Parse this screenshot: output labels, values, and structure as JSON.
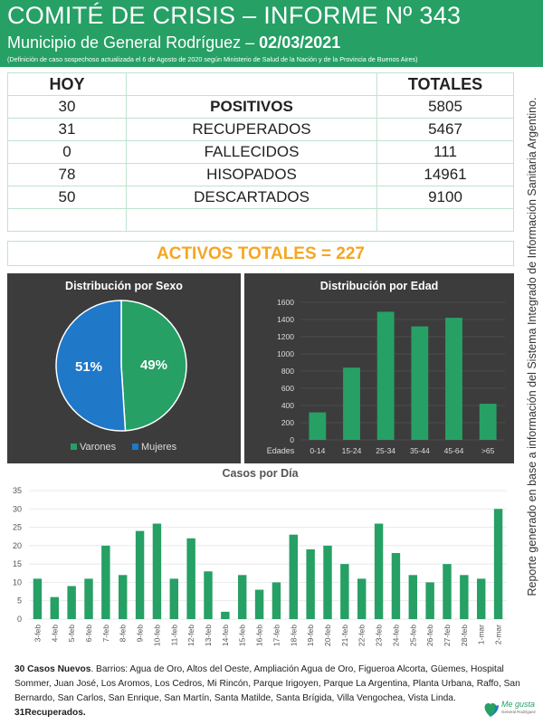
{
  "header": {
    "title": "COMITÉ DE CRISIS – INFORME Nº 343",
    "subtitle_prefix": "Municipio de General Rodríguez –",
    "date": "02/03/2021",
    "note": "(Definición de caso sospechoso actualizada el 6 de Agosto de 2020 según Ministerio de Salud de la Nación y de la Provincia de Buenos Aires)"
  },
  "summary": {
    "col_today": "HOY",
    "col_total": "TOTALES",
    "rows": [
      {
        "hoy": "30",
        "label": "POSITIVOS",
        "total": "5805"
      },
      {
        "hoy": "31",
        "label": "RECUPERADOS",
        "total": "5467"
      },
      {
        "hoy": "0",
        "label": "FALLECIDOS",
        "total": "111"
      },
      {
        "hoy": "78",
        "label": "HISOPADOS",
        "total": "14961"
      },
      {
        "hoy": "50",
        "label": "DESCARTADOS",
        "total": "9100"
      }
    ],
    "activos": "ACTIVOS TOTALES = 227"
  },
  "vertical_note": "Reporte generado en base a información del Sistema Integrado de Información Sanitaria Argentino.",
  "colors": {
    "green": "#26a065",
    "blue": "#1f78c8",
    "orange": "#f5a623",
    "panel": "#3c3c3c"
  },
  "chart_data": [
    {
      "type": "pie",
      "title": "Distribución por Sexo",
      "labels": [
        "Varones",
        "Mujeres"
      ],
      "values": [
        49,
        51
      ],
      "value_labels": [
        "49%",
        "51%"
      ],
      "colors": [
        "#26a065",
        "#1f78c8"
      ],
      "legend": "bottom"
    },
    {
      "type": "bar",
      "title": "Distribución por Edad",
      "xlabel": "Edades",
      "categories": [
        "0-14",
        "15-24",
        "25-34",
        "35-44",
        "45-64",
        ">65"
      ],
      "values": [
        320,
        840,
        1490,
        1320,
        1420,
        420
      ],
      "ylim": [
        0,
        1600
      ],
      "yticks": [
        0,
        200,
        400,
        600,
        800,
        1000,
        1200,
        1400,
        1600
      ],
      "grid": true
    },
    {
      "type": "bar",
      "title": "Casos por Día",
      "categories": [
        "3-feb",
        "4-feb",
        "5-feb",
        "6-feb",
        "7-feb",
        "8-feb",
        "9-feb",
        "10-feb",
        "11-feb",
        "12-feb",
        "13-feb",
        "14-feb",
        "15-feb",
        "16-feb",
        "17-feb",
        "18-feb",
        "19-feb",
        "20-feb",
        "21-feb",
        "22-feb",
        "23-feb",
        "24-feb",
        "25-feb",
        "26-feb",
        "27-feb",
        "28-feb",
        "1-mar",
        "2-mar"
      ],
      "values": [
        11,
        6,
        9,
        11,
        20,
        12,
        24,
        26,
        11,
        22,
        13,
        2,
        12,
        8,
        10,
        23,
        19,
        20,
        15,
        11,
        26,
        18,
        12,
        10,
        15,
        12,
        11,
        30
      ],
      "ylim": [
        0,
        35
      ],
      "yticks": [
        0,
        5,
        10,
        15,
        20,
        25,
        30,
        35
      ],
      "grid": true
    }
  ],
  "footer": {
    "lead": "30 Casos Nuevos",
    "barrios": ". Barrios: Agua de Oro, Altos del Oeste, Ampliación Agua de Oro, Figueroa Alcorta, Güemes, Hospital Sommer, Juan José, Los Aromos, Los Cedros, Mi Rincón, Parque Irigoyen, Parque La Argentina, Planta Urbana, Raffo, San Bernardo, San Carlos, San Enrique, San Martín, Santa Matilde, Santa Brígida, Villa Vengochea, Vista Linda.",
    "recuperados": "31Recuperados.",
    "logo_text": "Me gusta",
    "logo_sub": "General Rodríguez"
  }
}
